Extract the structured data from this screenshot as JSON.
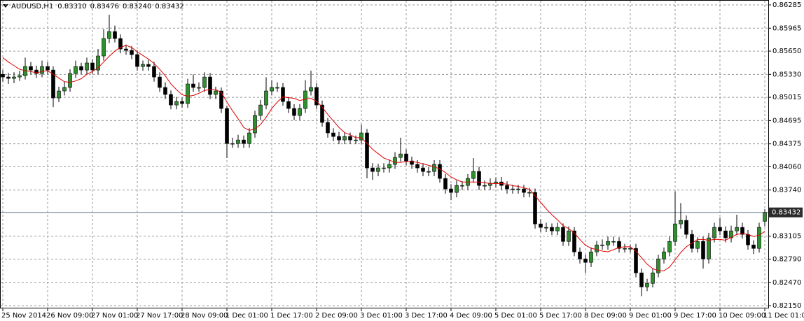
{
  "chart_data": {
    "type": "candlestick",
    "symbol": "AUDUSD,H1",
    "header_values": [
      {
        "value": 0.8331,
        "label": "0.83310"
      },
      {
        "value": 0.83476,
        "label": "0.83476"
      },
      {
        "value": 0.8324,
        "label": "0.83240"
      },
      {
        "value": 0.83432,
        "label": "0.83432"
      }
    ],
    "bull_color": "#2f8f2f",
    "bear_color": "#000000",
    "grid": true,
    "ylim": [
      0.82112,
      0.86343
    ],
    "yticks": [
      0.86285,
      0.85965,
      {
        "value": 0.8565,
        "label": "0.85650"
      },
      {
        "value": 0.8533,
        "label": "0.85330"
      },
      0.85015,
      0.84695,
      0.84375,
      {
        "value": 0.8406,
        "label": "0.84060"
      },
      {
        "value": 0.8374,
        "label": "0.83740"
      },
      0.83105,
      {
        "value": 0.8279,
        "label": "0.82790"
      },
      {
        "value": 0.8247,
        "label": "0.82470"
      },
      {
        "value": 0.8215,
        "label": "0.82150"
      }
    ],
    "last_price": {
      "value": 0.83432,
      "label": "0.83432"
    },
    "categories": [
      "25 Nov 2014",
      null,
      null,
      null,
      null,
      null,
      null,
      null,
      "26 Nov 09:00",
      null,
      null,
      null,
      null,
      null,
      null,
      null,
      "27 Nov 01:00",
      null,
      null,
      null,
      null,
      null,
      null,
      null,
      "27 Nov 17:00",
      null,
      null,
      null,
      null,
      null,
      null,
      null,
      "28 Nov 09:00",
      null,
      null,
      null,
      null,
      null,
      null,
      null,
      "1 Dec 01:00",
      null,
      null,
      null,
      null,
      null,
      null,
      null,
      "1 Dec 17:00",
      null,
      null,
      null,
      null,
      null,
      null,
      null,
      "2 Dec 09:00",
      null,
      null,
      null,
      null,
      null,
      null,
      null,
      "3 Dec 01:00",
      null,
      null,
      null,
      null,
      null,
      null,
      null,
      "3 Dec 17:00",
      null,
      null,
      null,
      null,
      null,
      null,
      null,
      "4 Dec 09:00",
      null,
      null,
      null,
      null,
      null,
      null,
      null,
      "5 Dec 01:00",
      null,
      null,
      null,
      null,
      null,
      null,
      null,
      "5 Dec 17:00",
      null,
      null,
      null,
      null,
      null,
      null,
      null,
      "8 Dec 09:00",
      null,
      null,
      null,
      null,
      null,
      null,
      null,
      "9 Dec 01:00",
      null,
      null,
      null,
      null,
      null,
      null,
      null,
      "9 Dec 17:00",
      null,
      null,
      null,
      null,
      null,
      null,
      null,
      "10 Dec 09:00",
      null,
      null,
      null,
      null,
      null,
      null,
      null,
      "11 Dec 01:00"
    ],
    "open": [
      0.8533,
      0.85294,
      0.85275,
      0.85294,
      0.85313,
      0.85438,
      0.8539,
      0.85342,
      0.85438,
      0.8539,
      0.85006,
      0.85102,
      0.8515,
      0.85342,
      0.85438,
      0.8539,
      0.85487,
      0.8539,
      0.85583,
      0.85823,
      0.85919,
      0.85823,
      0.85679,
      0.8566,
      0.85602,
      0.85438,
      0.85467,
      0.85438,
      0.85294,
      0.8515,
      0.85054,
      0.84909,
      0.84957,
      0.84929,
      0.85198,
      0.8515,
      0.8515,
      0.85294,
      0.85054,
      0.85102,
      0.84861,
      0.8438,
      0.8438,
      0.84428,
      0.8438,
      0.84525,
      0.84765,
      0.84909,
      0.85102,
      0.8515,
      0.8515,
      0.84957,
      0.84861,
      0.84765,
      0.84861,
      0.85102,
      0.8515,
      0.84909,
      0.84669,
      0.84525,
      0.84476,
      0.84428,
      0.84476,
      0.84428,
      0.84428,
      0.84525,
      0.84044,
      0.83995,
      0.84044,
      0.84044,
      0.84092,
      0.84188,
      0.84236,
      0.8414,
      0.84092,
      0.84044,
      0.83995,
      0.83995,
      0.84092,
      0.83899,
      0.83755,
      0.83707,
      0.83803,
      0.83803,
      0.83899,
      0.83995,
      0.83803,
      0.83803,
      0.83832,
      0.83851,
      0.83803,
      0.83755,
      0.83755,
      0.83755,
      0.83707,
      0.83707,
      0.83274,
      0.83226,
      0.83226,
      0.83178,
      0.83226,
      0.83033,
      0.83178,
      0.82889,
      0.82793,
      0.82745,
      0.82889,
      0.82985,
      0.82985,
      0.83033,
      0.83033,
      0.82937,
      0.82937,
      0.82937,
      0.82601,
      0.82408,
      0.82456,
      0.82601,
      0.82793,
      0.82889,
      0.83033,
      0.83274,
      0.83322,
      0.8313,
      0.82937,
      0.83033,
      0.82793,
      0.83082,
      0.83226,
      0.83178,
      0.83082,
      0.83178,
      0.83226,
      0.8313,
      0.82985,
      0.82937,
      0.8331
    ],
    "high": [
      0.8539,
      0.8535,
      0.8536,
      0.8538,
      0.8556,
      0.855,
      0.8545,
      0.8552,
      0.855,
      0.8544,
      0.8516,
      0.8523,
      0.854,
      0.8552,
      0.8549,
      0.8556,
      0.8554,
      0.8568,
      0.8595,
      0.8615,
      0.86,
      0.8588,
      0.8574,
      0.8572,
      0.8566,
      0.8552,
      0.8553,
      0.855,
      0.8536,
      0.8522,
      0.8511,
      0.8502,
      0.8501,
      0.8527,
      0.8533,
      0.8522,
      0.8536,
      0.8535,
      0.8516,
      0.8515,
      0.849,
      0.8446,
      0.845,
      0.8449,
      0.8459,
      0.8483,
      0.8498,
      0.8529,
      0.8525,
      0.8522,
      0.8521,
      0.8502,
      0.8492,
      0.8492,
      0.8525,
      0.8538,
      0.8521,
      0.8497,
      0.8473,
      0.8459,
      0.8454,
      0.8453,
      0.8453,
      0.8449,
      0.8464,
      0.8458,
      0.8411,
      0.841,
      0.8411,
      0.8416,
      0.8426,
      0.8446,
      0.843,
      0.842,
      0.8415,
      0.8411,
      0.8406,
      0.8415,
      0.8415,
      0.8396,
      0.8382,
      0.8387,
      0.8386,
      0.8396,
      0.8418,
      0.8406,
      0.8387,
      0.839,
      0.8391,
      0.8392,
      0.8386,
      0.8381,
      0.8381,
      0.8381,
      0.8377,
      0.8376,
      0.8334,
      0.8329,
      0.8328,
      0.8329,
      0.8328,
      0.8324,
      0.8323,
      0.8295,
      0.8285,
      0.8295,
      0.8304,
      0.8306,
      0.831,
      0.831,
      0.8309,
      0.83,
      0.8299,
      0.83,
      0.8266,
      0.8252,
      0.8266,
      0.8285,
      0.8295,
      0.831,
      0.8372,
      0.8356,
      0.8339,
      0.8319,
      0.8309,
      0.831,
      0.8315,
      0.8329,
      0.8336,
      0.8324,
      0.8325,
      0.834,
      0.8329,
      0.8319,
      0.8305,
      0.8329,
      0.83476
    ],
    "low": [
      0.8523,
      0.852,
      0.8521,
      0.8524,
      0.8526,
      0.8533,
      0.8528,
      0.8529,
      0.8533,
      0.8488,
      0.8495,
      0.8504,
      0.8509,
      0.8528,
      0.8533,
      0.8533,
      0.8533,
      0.8533,
      0.8552,
      0.8576,
      0.8577,
      0.8562,
      0.856,
      0.8554,
      0.8538,
      0.8538,
      0.8538,
      0.8523,
      0.8509,
      0.8499,
      0.8485,
      0.8485,
      0.8487,
      0.8487,
      0.8509,
      0.8509,
      0.8509,
      0.8499,
      0.8499,
      0.848,
      0.8418,
      0.8432,
      0.8432,
      0.8432,
      0.8432,
      0.8446,
      0.847,
      0.8485,
      0.8504,
      0.8509,
      0.849,
      0.848,
      0.847,
      0.847,
      0.848,
      0.8504,
      0.8485,
      0.8461,
      0.8446,
      0.8441,
      0.8437,
      0.8437,
      0.8437,
      0.8437,
      0.8437,
      0.839,
      0.8388,
      0.8393,
      0.8398,
      0.8398,
      0.8403,
      0.8413,
      0.8408,
      0.8403,
      0.8398,
      0.8393,
      0.8393,
      0.8393,
      0.8384,
      0.8369,
      0.836,
      0.8364,
      0.8374,
      0.8374,
      0.8384,
      0.8374,
      0.8374,
      0.8374,
      0.8377,
      0.8374,
      0.8369,
      0.8369,
      0.8369,
      0.8364,
      0.8364,
      0.8321,
      0.8316,
      0.8316,
      0.8312,
      0.8312,
      0.8297,
      0.8297,
      0.8283,
      0.8273,
      0.826,
      0.8268,
      0.8283,
      0.8292,
      0.8292,
      0.8297,
      0.8288,
      0.8288,
      0.8288,
      0.8254,
      0.8228,
      0.8235,
      0.824,
      0.8254,
      0.8273,
      0.8283,
      0.8297,
      0.8321,
      0.8307,
      0.8288,
      0.8288,
      0.8266,
      0.8273,
      0.8302,
      0.8312,
      0.8302,
      0.8302,
      0.8312,
      0.8307,
      0.8292,
      0.8286,
      0.8288,
      0.8324
    ],
    "close": [
      0.85294,
      0.85275,
      0.85294,
      0.85313,
      0.85438,
      0.8539,
      0.85342,
      0.85438,
      0.8539,
      0.85006,
      0.85102,
      0.8515,
      0.85342,
      0.85438,
      0.8539,
      0.85487,
      0.8539,
      0.85583,
      0.85823,
      0.85919,
      0.85823,
      0.85679,
      0.8566,
      0.85602,
      0.85438,
      0.85467,
      0.85438,
      0.85294,
      0.8515,
      0.85054,
      0.84909,
      0.84957,
      0.84929,
      0.85198,
      0.8515,
      0.8515,
      0.85294,
      0.85054,
      0.85102,
      0.84861,
      0.8438,
      0.8438,
      0.84428,
      0.8438,
      0.84525,
      0.84765,
      0.84909,
      0.85102,
      0.8515,
      0.8515,
      0.84957,
      0.84861,
      0.84765,
      0.84861,
      0.85102,
      0.8515,
      0.84909,
      0.84669,
      0.84525,
      0.84476,
      0.84428,
      0.84476,
      0.84428,
      0.84428,
      0.84525,
      0.84044,
      0.83995,
      0.84044,
      0.84044,
      0.84092,
      0.84188,
      0.84236,
      0.8414,
      0.84092,
      0.84044,
      0.83995,
      0.83995,
      0.84092,
      0.83899,
      0.83755,
      0.83707,
      0.83803,
      0.83803,
      0.83899,
      0.83995,
      0.83803,
      0.83803,
      0.83832,
      0.83851,
      0.83803,
      0.83755,
      0.83755,
      0.83755,
      0.83707,
      0.83707,
      0.83274,
      0.83226,
      0.83226,
      0.83178,
      0.83226,
      0.83033,
      0.83178,
      0.82889,
      0.82793,
      0.82745,
      0.82889,
      0.82985,
      0.82985,
      0.83033,
      0.83033,
      0.82937,
      0.82937,
      0.82937,
      0.82601,
      0.82408,
      0.82456,
      0.82601,
      0.82793,
      0.82889,
      0.83033,
      0.83274,
      0.83322,
      0.8313,
      0.82937,
      0.83033,
      0.82793,
      0.83082,
      0.83226,
      0.83178,
      0.83082,
      0.83178,
      0.83226,
      0.8313,
      0.82985,
      0.82937,
      0.83226,
      0.83432
    ],
    "ma": {
      "color": "#e00000",
      "values": [
        0.8556,
        0.855,
        0.8545,
        0.854,
        0.8538,
        0.8537,
        0.8535,
        0.8537,
        0.8538,
        0.8533,
        0.8528,
        0.8523,
        0.8522,
        0.8524,
        0.8527,
        0.8533,
        0.8537,
        0.8542,
        0.855,
        0.8558,
        0.8565,
        0.857,
        0.8573,
        0.857,
        0.8564,
        0.8559,
        0.8554,
        0.8548,
        0.854,
        0.8531,
        0.852,
        0.8512,
        0.8505,
        0.8503,
        0.8504,
        0.8507,
        0.8511,
        0.8512,
        0.8512,
        0.8508,
        0.8495,
        0.8483,
        0.8472,
        0.846,
        0.8456,
        0.8458,
        0.8464,
        0.8474,
        0.8486,
        0.8495,
        0.8502,
        0.8501,
        0.85,
        0.8497,
        0.8499,
        0.85,
        0.8496,
        0.8488,
        0.8478,
        0.8469,
        0.846,
        0.8453,
        0.845,
        0.8446,
        0.8446,
        0.8438,
        0.843,
        0.8424,
        0.8418,
        0.8415,
        0.8412,
        0.8412,
        0.8413,
        0.8413,
        0.8412,
        0.841,
        0.8408,
        0.8406,
        0.8403,
        0.8398,
        0.8392,
        0.8388,
        0.8385,
        0.8385,
        0.8385,
        0.8385,
        0.8384,
        0.8383,
        0.8383,
        0.8383,
        0.8382,
        0.838,
        0.8379,
        0.8377,
        0.8375,
        0.8366,
        0.8357,
        0.8348,
        0.834,
        0.8333,
        0.8325,
        0.8321,
        0.8315,
        0.8306,
        0.8298,
        0.8294,
        0.8292,
        0.829,
        0.8289,
        0.8292,
        0.8295,
        0.8296,
        0.8296,
        0.829,
        0.8281,
        0.8272,
        0.8266,
        0.8263,
        0.8263,
        0.8268,
        0.8278,
        0.8288,
        0.8296,
        0.8301,
        0.8306,
        0.8306,
        0.8305,
        0.8306,
        0.8306,
        0.8305,
        0.8309,
        0.8313,
        0.8314,
        0.8313,
        0.831,
        0.8312,
        0.8317
      ]
    }
  }
}
